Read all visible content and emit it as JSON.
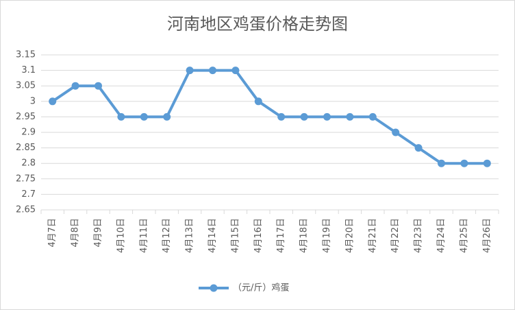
{
  "chart_data": {
    "type": "line",
    "title": "河南地区鸡蛋价格走势图",
    "categories": [
      "4月7日",
      "4月8日",
      "4月9日",
      "4月10日",
      "4月11日",
      "4月12日",
      "4月13日",
      "4月14日",
      "4月15日",
      "4月16日",
      "4月17日",
      "4月18日",
      "4月19日",
      "4月20日",
      "4月21日",
      "4月22日",
      "4月23日",
      "4月24日",
      "4月25日",
      "4月26日"
    ],
    "series": [
      {
        "name": "（元/斤）鸡蛋",
        "color": "#5b9bd5",
        "values": [
          3,
          3.05,
          3.05,
          2.95,
          2.95,
          2.95,
          3.1,
          3.1,
          3.1,
          3,
          2.95,
          2.95,
          2.95,
          2.95,
          2.95,
          2.9,
          2.85,
          2.8,
          2.8,
          2.8
        ]
      }
    ],
    "ylim": [
      2.65,
      3.15
    ],
    "yticks": [
      2.65,
      2.7,
      2.75,
      2.8,
      2.85,
      2.9,
      2.95,
      3,
      3.05,
      3.1,
      3.15
    ],
    "grid": true,
    "legend": "bottom"
  }
}
